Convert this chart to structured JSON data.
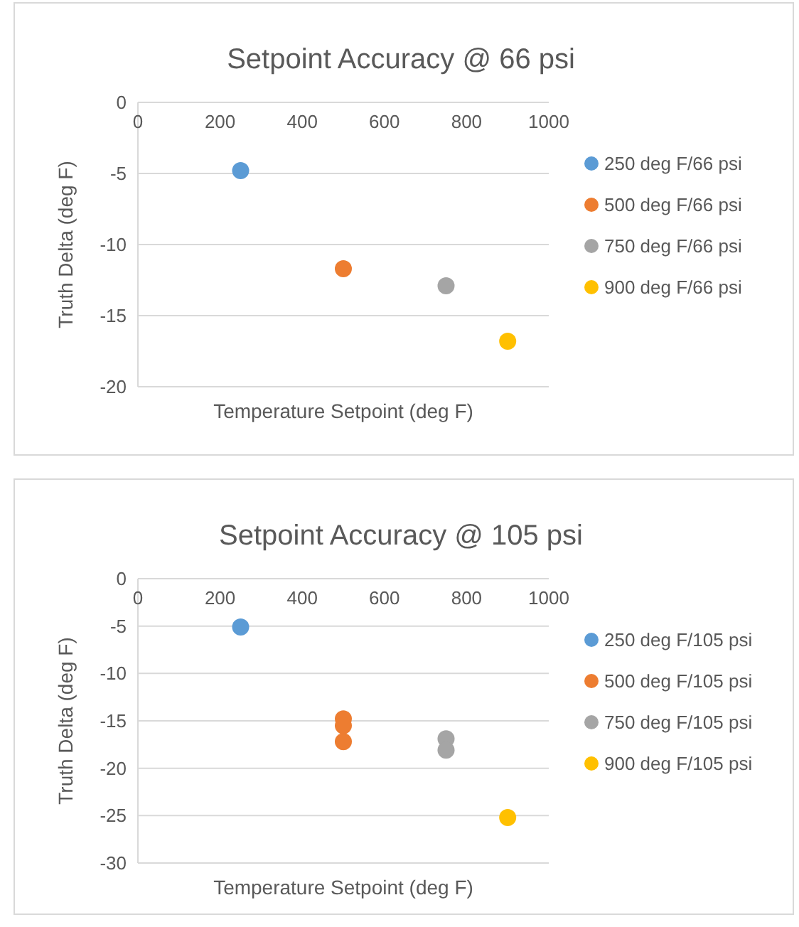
{
  "chart_data": [
    {
      "type": "scatter",
      "title": "Setpoint Accuracy @ 66 psi",
      "xlabel": "Temperature Setpoint (deg F)",
      "ylabel": "Truth Delta (deg F)",
      "xlim": [
        0,
        1000
      ],
      "xticks": [
        0,
        200,
        400,
        600,
        800,
        1000
      ],
      "ylim": [
        -20,
        0
      ],
      "yticks": [
        -20,
        -15,
        -10,
        -5,
        0
      ],
      "grid": "y",
      "legend": "right",
      "marker": "circle",
      "series": [
        {
          "name": "250 deg F/66 psi",
          "color": "#5b9bd5",
          "x": [
            250
          ],
          "values": [
            -4.8
          ]
        },
        {
          "name": "500 deg F/66 psi",
          "color": "#ed7d31",
          "x": [
            500
          ],
          "values": [
            -11.7
          ]
        },
        {
          "name": "750 deg F/66 psi",
          "color": "#a5a5a5",
          "x": [
            750
          ],
          "values": [
            -12.9
          ]
        },
        {
          "name": "900 deg F/66 psi",
          "color": "#ffc000",
          "x": [
            900
          ],
          "values": [
            -16.8
          ]
        }
      ]
    },
    {
      "type": "scatter",
      "title": "Setpoint Accuracy @ 105 psi",
      "xlabel": "Temperature Setpoint (deg F)",
      "ylabel": "Truth Delta (deg F)",
      "xlim": [
        0,
        1000
      ],
      "xticks": [
        0,
        200,
        400,
        600,
        800,
        1000
      ],
      "ylim": [
        -30,
        0
      ],
      "yticks": [
        -30,
        -25,
        -20,
        -15,
        -10,
        -5,
        0
      ],
      "grid": "y",
      "legend": "right",
      "marker": "circle",
      "series": [
        {
          "name": "250 deg F/105 psi",
          "color": "#5b9bd5",
          "x": [
            250
          ],
          "values": [
            -5.1
          ]
        },
        {
          "name": "500 deg F/105 psi",
          "color": "#ed7d31",
          "x": [
            500,
            500,
            500
          ],
          "values": [
            -14.8,
            -15.5,
            -17.2
          ]
        },
        {
          "name": "750 deg F/105 psi",
          "color": "#a5a5a5",
          "x": [
            750,
            750
          ],
          "values": [
            -16.9,
            -18.1
          ]
        },
        {
          "name": "900 deg F/105 psi",
          "color": "#ffc000",
          "x": [
            900
          ],
          "values": [
            -25.2
          ]
        }
      ]
    }
  ]
}
